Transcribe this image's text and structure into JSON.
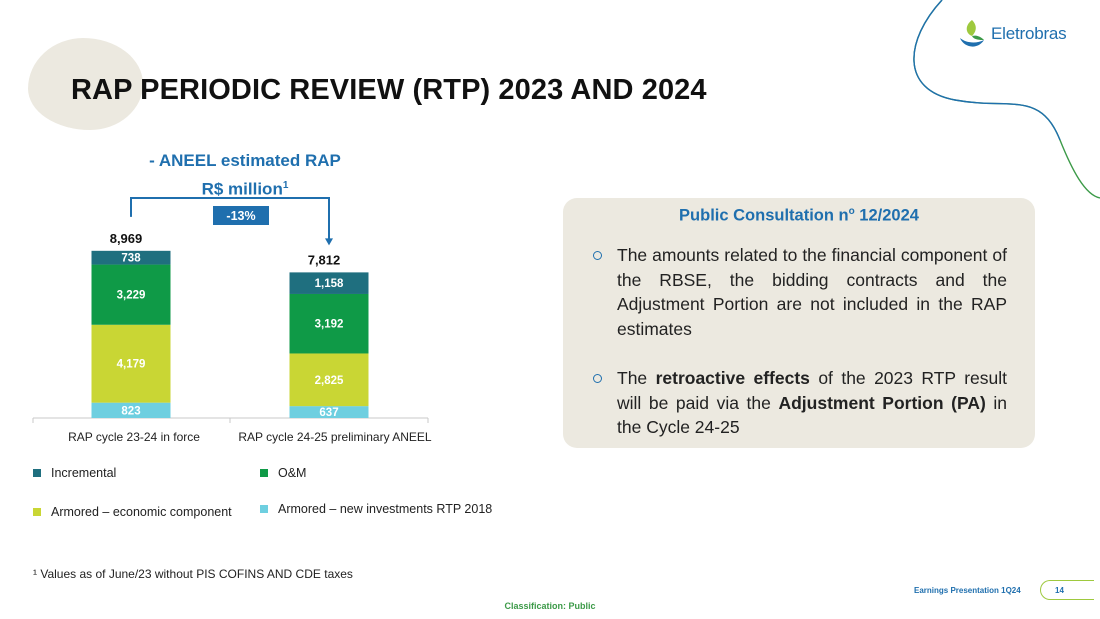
{
  "brand": {
    "name": "Eletrobras",
    "colors": {
      "blue": "#1f6fae",
      "green": "#3c9a48",
      "lime": "#c9d634",
      "teal": "#1f6f7f",
      "panel": "#ece9e0"
    }
  },
  "slide": {
    "title": "RAP PERIODIC REVIEW (RTP) 2023 AND 2024"
  },
  "chart_data": {
    "type": "bar",
    "stacked": true,
    "title_line1": "- ANEEL estimated RAP",
    "title_line2": "R$ million",
    "title_sup": "1",
    "categories": [
      "RAP cycle 23-24 in force",
      "RAP cycle 24-25 preliminary ANEEL"
    ],
    "totals": [
      "8,969",
      "7,812"
    ],
    "change_label": "-13%",
    "series": [
      {
        "name": "Armored – new investments RTP 2018",
        "color": "#6ecfe0",
        "values": [
          823,
          637
        ],
        "labels": [
          "823",
          "637"
        ]
      },
      {
        "name": "Armored – economic component",
        "color": "#c9d634",
        "values": [
          4179,
          2825
        ],
        "labels": [
          "4,179",
          "2,825"
        ]
      },
      {
        "name": "O&M",
        "color": "#0f9a47",
        "values": [
          3229,
          3192
        ],
        "labels": [
          "3,229",
          "3,192"
        ]
      },
      {
        "name": "Incremental",
        "color": "#1f6f7f",
        "values": [
          738,
          1158
        ],
        "labels": [
          "738",
          "1,158"
        ]
      }
    ],
    "legend": [
      {
        "name": "Incremental",
        "color": "#1f6f7f"
      },
      {
        "name": "O&M",
        "color": "#0f9a47"
      },
      {
        "name": "Armored – economic component",
        "color": "#c9d634"
      },
      {
        "name": "Armored – new investments RTP 2018",
        "color": "#6ecfe0"
      }
    ],
    "grid": false,
    "legend_position": "bottom"
  },
  "footnote": "¹ Values as of June/23 without PIS COFINS AND CDE taxes",
  "panel": {
    "title": "Public Consultation n",
    "title_sup": "o",
    "title_suffix": " 12/2024",
    "bullet1": "The amounts related to the financial component of the RBSE, the bidding contracts and the Adjustment Portion are not included in the RAP estimates",
    "bullet2_a": "The ",
    "bullet2_b": "retroactive effects",
    "bullet2_c": " of the 2023 RTP result will be paid via the ",
    "bullet2_d": "Adjustment Portion (PA)",
    "bullet2_e": " in the Cycle 24-25"
  },
  "footer": {
    "classification": "Classification: Public",
    "earnings": "Earnings Presentation 1Q24",
    "page": "14"
  }
}
